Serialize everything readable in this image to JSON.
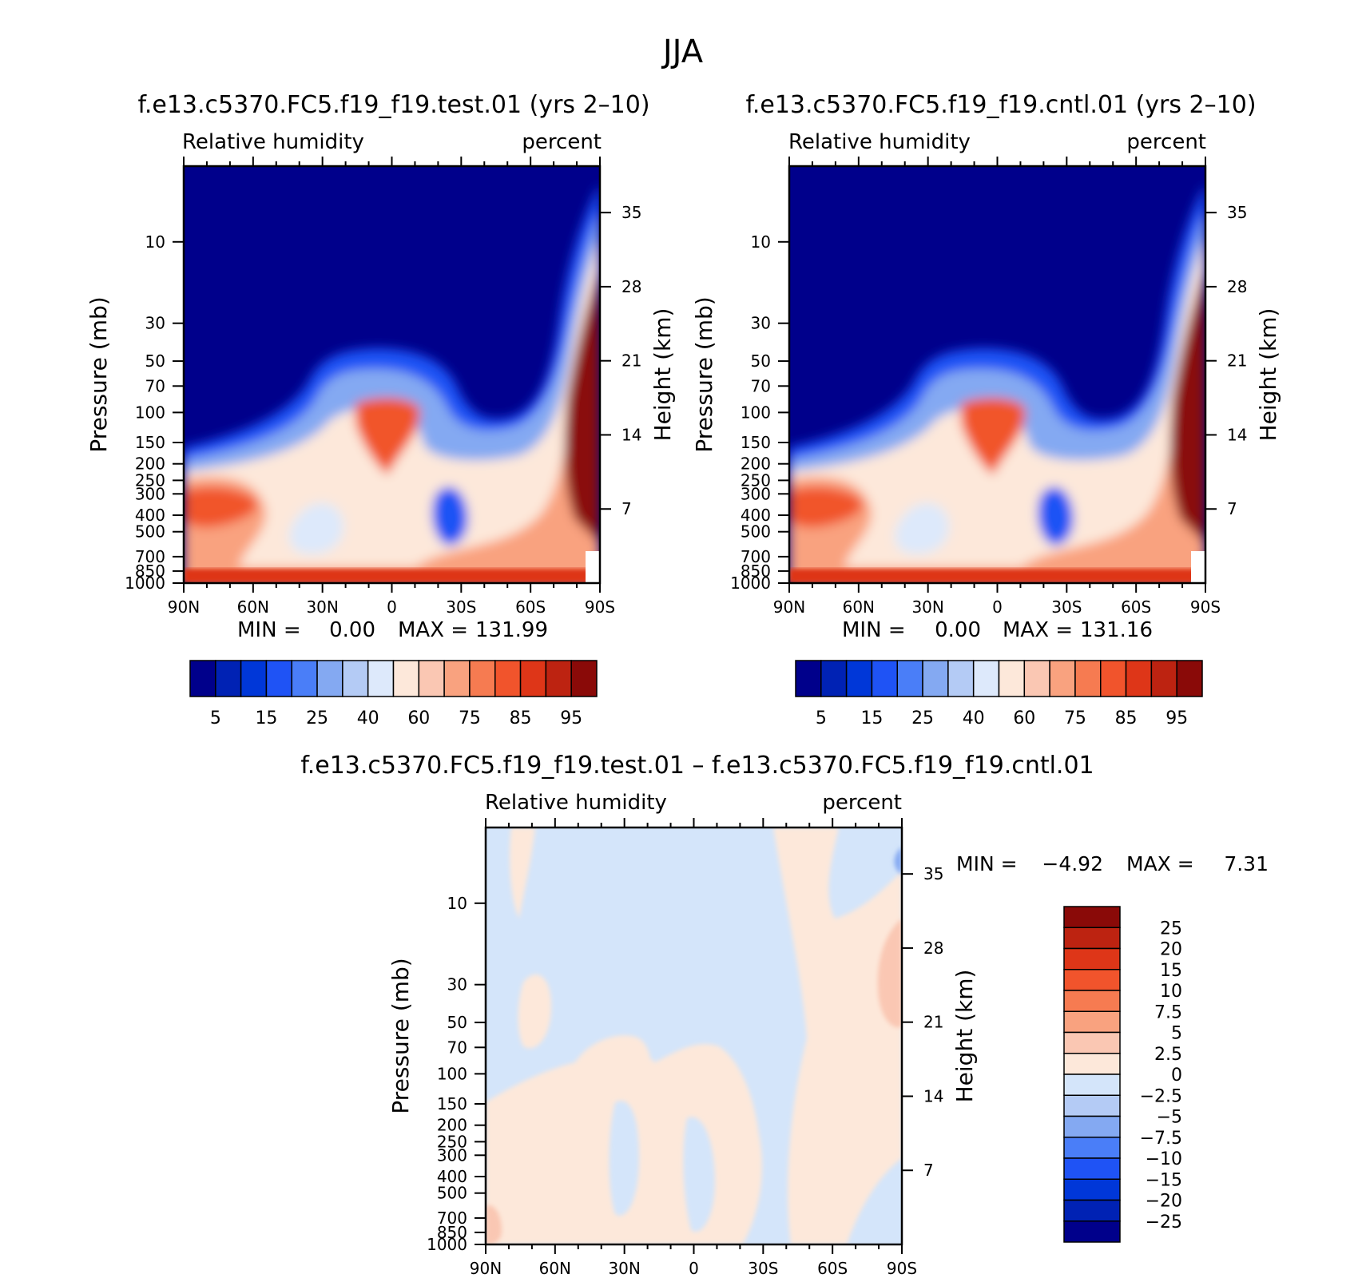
{
  "season": "JJA",
  "colors": {
    "abs_scale": [
      "#00008b",
      "#0022b4",
      "#0037d8",
      "#1f53f5",
      "#4a7ef8",
      "#84a9f2",
      "#b4cbf5",
      "#dde9fb",
      "#fde8da",
      "#fac7b3",
      "#f9a27f",
      "#f67b51",
      "#f1542c",
      "#de3618",
      "#bd2311",
      "#8a0a08"
    ],
    "diff_scale": [
      "#00008b",
      "#0022b4",
      "#0037d8",
      "#1f53f5",
      "#4a7ef8",
      "#84a9f2",
      "#b4cbf5",
      "#d4e5fa",
      "#fde8da",
      "#fac7b3",
      "#f9a27f",
      "#f67b51",
      "#f1542c",
      "#de3618",
      "#bd2311",
      "#8a0a08"
    ]
  },
  "panels": {
    "test": {
      "title": "f.e13.c5370.FC5.f19_f19.test.01 (yrs 2–10)",
      "variable": "Relative humidity",
      "units": "percent",
      "min_label": "MIN =",
      "min_value": "0.00",
      "max_label": "MAX =",
      "max_value": "131.99"
    },
    "cntl": {
      "title": "f.e13.c5370.FC5.f19_f19.cntl.01 (yrs 2–10)",
      "variable": "Relative humidity",
      "units": "percent",
      "min_label": "MIN =",
      "min_value": "0.00",
      "max_label": "MAX =",
      "max_value": "131.16"
    },
    "diff": {
      "title": "f.e13.c5370.FC5.f19_f19.test.01 – f.e13.c5370.FC5.f19_f19.cntl.01",
      "variable": "Relative humidity",
      "units": "percent",
      "min_label": "MIN =",
      "min_value": "−4.92",
      "max_label": "MAX =",
      "max_value": "7.31"
    }
  },
  "chart_data": [
    {
      "type": "heatmap",
      "title": "f.e13.c5370.FC5.f19_f19.test.01 (yrs 2–10)",
      "subtitle_left": "Relative humidity",
      "subtitle_right": "percent",
      "xlabel": "",
      "ylabel": "Pressure (mb)",
      "ylabel_right": "Height (km)",
      "xlim": [
        90,
        -90
      ],
      "x_ticks": [
        "90N",
        "60N",
        "30N",
        "0",
        "30S",
        "60S",
        "90S"
      ],
      "y_ticks": [
        10,
        30,
        50,
        70,
        100,
        150,
        200,
        250,
        300,
        400,
        500,
        700,
        850,
        1000
      ],
      "y_right_ticks": [
        35,
        28,
        21,
        14,
        7
      ],
      "colorbar_labels": [
        "5",
        "15",
        "25",
        "40",
        "60",
        "75",
        "85",
        "95"
      ],
      "min": 0.0,
      "max": 131.99
    },
    {
      "type": "heatmap",
      "title": "f.e13.c5370.FC5.f19_f19.cntl.01 (yrs 2–10)",
      "subtitle_left": "Relative humidity",
      "subtitle_right": "percent",
      "xlabel": "",
      "ylabel": "Pressure (mb)",
      "ylabel_right": "Height (km)",
      "xlim": [
        90,
        -90
      ],
      "x_ticks": [
        "90N",
        "60N",
        "30N",
        "0",
        "30S",
        "60S",
        "90S"
      ],
      "y_ticks": [
        10,
        30,
        50,
        70,
        100,
        150,
        200,
        250,
        300,
        400,
        500,
        700,
        850,
        1000
      ],
      "y_right_ticks": [
        35,
        28,
        21,
        14,
        7
      ],
      "colorbar_labels": [
        "5",
        "15",
        "25",
        "40",
        "60",
        "75",
        "85",
        "95"
      ],
      "min": 0.0,
      "max": 131.16
    },
    {
      "type": "heatmap",
      "title": "f.e13.c5370.FC5.f19_f19.test.01 – f.e13.c5370.FC5.f19_f19.cntl.01",
      "subtitle_left": "Relative humidity",
      "subtitle_right": "percent",
      "xlabel": "",
      "ylabel": "Pressure (mb)",
      "ylabel_right": "Height (km)",
      "xlim": [
        90,
        -90
      ],
      "x_ticks": [
        "90N",
        "60N",
        "30N",
        "0",
        "30S",
        "60S",
        "90S"
      ],
      "y_ticks": [
        10,
        30,
        50,
        70,
        100,
        150,
        200,
        250,
        300,
        400,
        500,
        700,
        850,
        1000
      ],
      "y_right_ticks": [
        35,
        28,
        21,
        14,
        7
      ],
      "colorbar_labels": [
        "25",
        "20",
        "15",
        "10",
        "7.5",
        "5",
        "2.5",
        "0",
        "−2.5",
        "−5",
        "−7.5",
        "−10",
        "−15",
        "−20",
        "−25"
      ],
      "min": -4.92,
      "max": 7.31
    }
  ]
}
